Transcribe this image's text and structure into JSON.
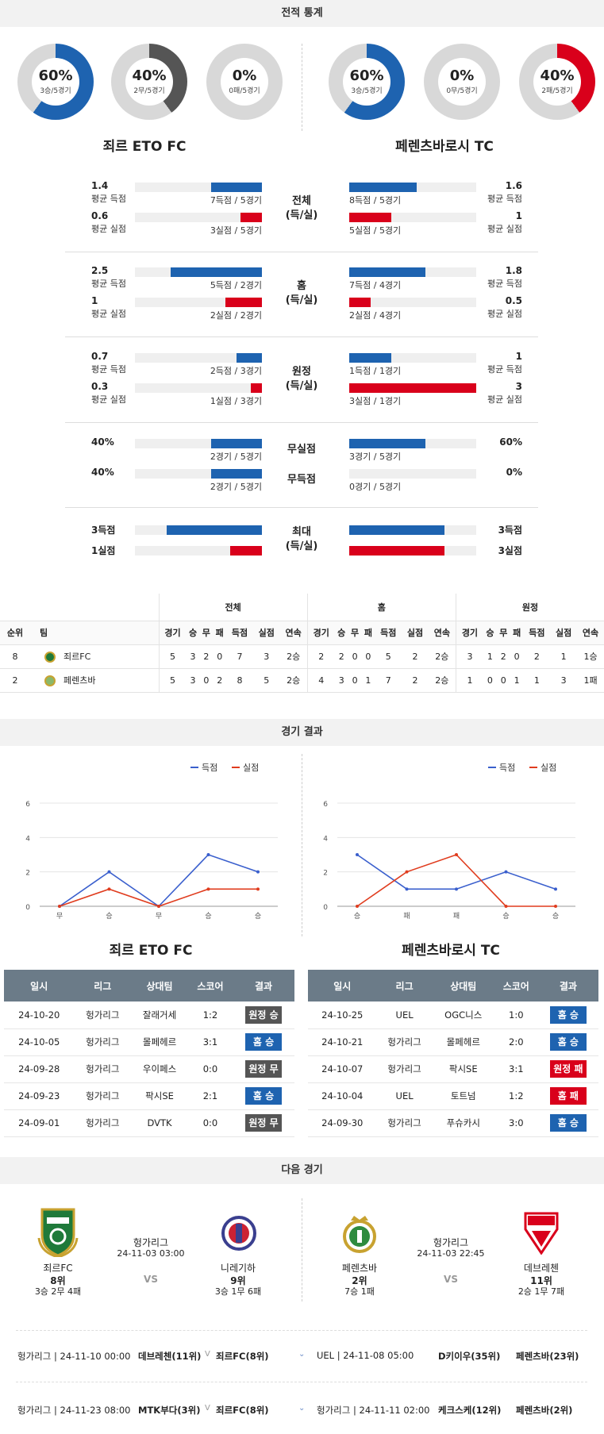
{
  "sections": {
    "stats": "전적 통계",
    "results": "경기 결과",
    "next": "다음 경기"
  },
  "teams": {
    "home": "죄르 ETO FC",
    "away": "페렌츠바로시 TC"
  },
  "donuts": [
    {
      "pct": "60%",
      "sub": "3승/5경기",
      "fill": 0.6,
      "color": "#1e63b0"
    },
    {
      "pct": "40%",
      "sub": "2무/5경기",
      "fill": 0.4,
      "color": "#555555"
    },
    {
      "pct": "0%",
      "sub": "0패/5경기",
      "fill": 0,
      "color": "#d9001b"
    },
    {
      "pct": "60%",
      "sub": "3승/5경기",
      "fill": 0.6,
      "color": "#1e63b0"
    },
    {
      "pct": "0%",
      "sub": "0무/5경기",
      "fill": 0,
      "color": "#555555"
    },
    {
      "pct": "40%",
      "sub": "2패/5경기",
      "fill": 0.4,
      "color": "#d9001b"
    }
  ],
  "compare": [
    {
      "label1": "전체",
      "label2": "(득/실)",
      "rows": [
        {
          "lv": "1.4",
          "ls": "평균 득점",
          "lbar": "7득점 / 5경기",
          "lfill": 0.4,
          "rv": "1.6",
          "rs": "평균 득점",
          "rbar": "8득점 / 5경기",
          "rfill": 0.53,
          "color": "blue"
        },
        {
          "lv": "0.6",
          "ls": "평균 실점",
          "lbar": "3실점 / 5경기",
          "lfill": 0.17,
          "rv": "1",
          "rs": "평균 실점",
          "rbar": "5실점 / 5경기",
          "rfill": 0.33,
          "color": "red"
        }
      ]
    },
    {
      "label1": "홈",
      "label2": "(득/실)",
      "rows": [
        {
          "lv": "2.5",
          "ls": "평균 득점",
          "lbar": "5득점 / 2경기",
          "lfill": 0.72,
          "rv": "1.8",
          "rs": "평균 득점",
          "rbar": "7득점 / 4경기",
          "rfill": 0.6,
          "color": "blue"
        },
        {
          "lv": "1",
          "ls": "평균 실점",
          "lbar": "2실점 / 2경기",
          "lfill": 0.29,
          "rv": "0.5",
          "rs": "평균 실점",
          "rbar": "2실점 / 4경기",
          "rfill": 0.17,
          "color": "red"
        }
      ]
    },
    {
      "label1": "원정",
      "label2": "(득/실)",
      "rows": [
        {
          "lv": "0.7",
          "ls": "평균 득점",
          "lbar": "2득점 / 3경기",
          "lfill": 0.2,
          "rv": "1",
          "rs": "평균 득점",
          "rbar": "1득점 / 1경기",
          "rfill": 0.33,
          "color": "blue"
        },
        {
          "lv": "0.3",
          "ls": "평균 실점",
          "lbar": "1실점 / 3경기",
          "lfill": 0.09,
          "rv": "3",
          "rs": "평균 실점",
          "rbar": "3실점 / 1경기",
          "rfill": 1.0,
          "color": "red"
        }
      ]
    }
  ],
  "cleansheet": {
    "label": "무실점",
    "lv": "40%",
    "lbar": "2경기 / 5경기",
    "lfill": 0.4,
    "rv": "60%",
    "rbar": "3경기 / 5경기",
    "rfill": 0.6
  },
  "noscore": {
    "label": "무득점",
    "lv": "40%",
    "lbar": "2경기 / 5경기",
    "lfill": 0.4,
    "rv": "0%",
    "rbar": "0경기 / 5경기",
    "rfill": 0
  },
  "max": {
    "label1": "최대",
    "label2": "(득/실)",
    "l1": "3득점",
    "l2": "1실점",
    "r1": "3득점",
    "r2": "3실점",
    "lf1": 0.75,
    "lf2": 0.25,
    "rf1": 0.75,
    "rf2": 0.75
  },
  "standings": {
    "groups": [
      "전체",
      "홈",
      "원정"
    ],
    "cols": [
      "순위",
      "팀",
      "경기",
      "승",
      "무",
      "패",
      "득점",
      "실점",
      "연속"
    ],
    "rows": [
      {
        "rank": "8",
        "team": "죄르FC",
        "all": [
          "5",
          "3",
          "2",
          "0",
          "7",
          "3",
          "2승"
        ],
        "home": [
          "2",
          "2",
          "0",
          "0",
          "5",
          "2",
          "2승"
        ],
        "away": [
          "3",
          "1",
          "2",
          "0",
          "2",
          "1",
          "1승"
        ]
      },
      {
        "rank": "2",
        "team": "페렌츠바",
        "all": [
          "5",
          "3",
          "0",
          "2",
          "8",
          "5",
          "2승"
        ],
        "home": [
          "4",
          "3",
          "0",
          "1",
          "7",
          "2",
          "2승"
        ],
        "away": [
          "1",
          "0",
          "0",
          "1",
          "1",
          "3",
          "1패"
        ]
      }
    ]
  },
  "chart_data": [
    {
      "type": "line",
      "legend": [
        "득점",
        "실점"
      ],
      "categories": [
        "무",
        "승",
        "무",
        "승",
        "승"
      ],
      "ylim": [
        0,
        6
      ],
      "yticks": [
        0,
        2,
        4,
        6
      ],
      "series": [
        {
          "name": "득점",
          "values": [
            0,
            2,
            0,
            3,
            2
          ],
          "color": "#3a5fcd"
        },
        {
          "name": "실점",
          "values": [
            0,
            1,
            0,
            1,
            1
          ],
          "color": "#e03c1e"
        }
      ]
    },
    {
      "type": "line",
      "legend": [
        "득점",
        "실점"
      ],
      "categories": [
        "승",
        "패",
        "패",
        "승",
        "승"
      ],
      "ylim": [
        0,
        6
      ],
      "yticks": [
        0,
        2,
        4,
        6
      ],
      "series": [
        {
          "name": "득점",
          "values": [
            3,
            1,
            1,
            2,
            1
          ],
          "color": "#3a5fcd"
        },
        {
          "name": "실점",
          "values": [
            0,
            2,
            3,
            0,
            0
          ],
          "color": "#e03c1e"
        }
      ]
    }
  ],
  "results": {
    "headers": [
      "일시",
      "리그",
      "상대팀",
      "스코어",
      "결과"
    ],
    "home": [
      {
        "date": "24-10-20",
        "league": "헝가리그",
        "opp": "잘래거세",
        "score": "1:2",
        "res": "원정 승",
        "cls": "b-away"
      },
      {
        "date": "24-10-05",
        "league": "헝가리그",
        "opp": "몰페헤르",
        "score": "3:1",
        "res": "홈 승",
        "cls": "b-home"
      },
      {
        "date": "24-09-28",
        "league": "헝가리그",
        "opp": "우이페스",
        "score": "0:0",
        "res": "원정 무",
        "cls": "b-away"
      },
      {
        "date": "24-09-23",
        "league": "헝가리그",
        "opp": "팍시SE",
        "score": "2:1",
        "res": "홈 승",
        "cls": "b-home"
      },
      {
        "date": "24-09-01",
        "league": "헝가리그",
        "opp": "DVTK",
        "score": "0:0",
        "res": "원정 무",
        "cls": "b-away"
      }
    ],
    "away": [
      {
        "date": "24-10-25",
        "league": "UEL",
        "opp": "OGC니스",
        "score": "1:0",
        "res": "홈 승",
        "cls": "b-home"
      },
      {
        "date": "24-10-21",
        "league": "헝가리그",
        "opp": "몰페헤르",
        "score": "2:0",
        "res": "홈 승",
        "cls": "b-home"
      },
      {
        "date": "24-10-07",
        "league": "헝가리그",
        "opp": "팍시SE",
        "score": "3:1",
        "res": "원정 패",
        "cls": "b-loss"
      },
      {
        "date": "24-10-04",
        "league": "UEL",
        "opp": "토트넘",
        "score": "1:2",
        "res": "홈 패",
        "cls": "b-loss"
      },
      {
        "date": "24-09-30",
        "league": "헝가리그",
        "opp": "푸슈카시",
        "score": "3:0",
        "res": "홈 승",
        "cls": "b-home"
      }
    ]
  },
  "next": {
    "left": {
      "league": "헝가리그",
      "time": "24-11-03 03:00",
      "vs": "VS",
      "t1": {
        "name": "죄르FC",
        "rank": "8위",
        "rec": "3승 2무 4패"
      },
      "t2": {
        "name": "니레기하",
        "rank": "9위",
        "rec": "3승 1무 6패"
      }
    },
    "right": {
      "league": "헝가리그",
      "time": "24-11-03 22:45",
      "vs": "VS",
      "t1": {
        "name": "페렌츠바",
        "rank": "2위",
        "rec": "7승 1패"
      },
      "t2": {
        "name": "데브레첸",
        "rank": "11위",
        "rec": "2승 1무 7패"
      }
    }
  },
  "upcoming": [
    {
      "info": "헝가리그 | 24-11-10 00:00",
      "t1": "데브레첸(11위)",
      "t2": "죄르FC(8위)",
      "info2": "UEL | 24-11-08 05:00",
      "u1": "D키이우(35위)",
      "u2": "페렌츠바(23위)"
    },
    {
      "info": "헝가리그 | 24-11-23 08:00",
      "t1": "MTK부다(3위)",
      "t2": "죄르FC(8위)",
      "info2": "헝가리그 | 24-11-11 02:00",
      "u1": "케크스케(12위)",
      "u2": "페렌츠바(2위)"
    }
  ]
}
